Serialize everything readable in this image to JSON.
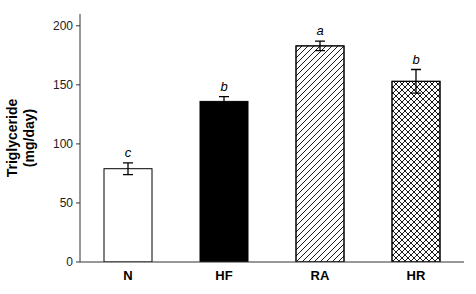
{
  "chart_data": {
    "type": "bar",
    "categories": [
      "N",
      "HF",
      "RA",
      "HR"
    ],
    "values": [
      79,
      136,
      183,
      153
    ],
    "errors": [
      5,
      4,
      4,
      10
    ],
    "letters": [
      "c",
      "b",
      "a",
      "b"
    ],
    "colors": [
      "white",
      "black",
      "white",
      "white"
    ],
    "ylabel": "Triglyceride\n(mg/day)",
    "ylim": [
      0,
      210
    ],
    "yticks": [
      0,
      50,
      100,
      150,
      200
    ],
    "grid": false
  }
}
